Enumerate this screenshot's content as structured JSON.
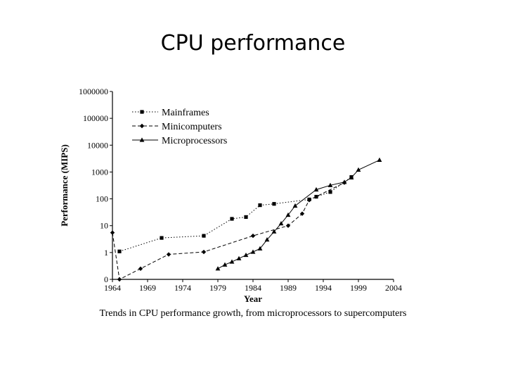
{
  "slide": {
    "title": "CPU performance"
  },
  "chart_data": {
    "type": "line",
    "title": "",
    "caption": "Trends in CPU performance growth, from microprocessors to supercomputers",
    "xlabel": "Year",
    "ylabel": "Performance (MIPS)",
    "xlim": [
      1964,
      2004
    ],
    "y_scale": "log",
    "ylim": [
      0.1,
      1000000
    ],
    "x_ticks": [
      1964,
      1969,
      1974,
      1979,
      1984,
      1989,
      1994,
      1999,
      2004
    ],
    "x_tick_labels": [
      "1964",
      "1969",
      "1974",
      "1979",
      "1984",
      "1989",
      "1994",
      "1999",
      "2004"
    ],
    "y_ticks": [
      0.1,
      1,
      10,
      100,
      1000,
      10000,
      100000,
      1000000
    ],
    "y_tick_labels": [
      "0",
      "1",
      "10",
      "100",
      "1000",
      "10000",
      "100000",
      "1000000"
    ],
    "grid": false,
    "legend_position": "top-left",
    "series": [
      {
        "name": "Mainframes",
        "marker": "square",
        "line_style": "dotted",
        "x": [
          1965,
          1971,
          1977,
          1981,
          1983,
          1985,
          1987,
          1992,
          1993,
          1995,
          1998
        ],
        "y": [
          1.1,
          3.5,
          4.2,
          18,
          21,
          58,
          65,
          95,
          120,
          180,
          650
        ]
      },
      {
        "name": "Minicomputers",
        "marker": "diamond",
        "line_style": "dashed",
        "x": [
          1964,
          1965,
          1968,
          1972,
          1977,
          1984,
          1989,
          1991,
          1992,
          1997
        ],
        "y": [
          5.5,
          0.1,
          0.25,
          0.85,
          1.05,
          4.2,
          10,
          28,
          90,
          400
        ]
      },
      {
        "name": "Microprocessors",
        "marker": "triangle",
        "line_style": "solid",
        "x": [
          1979,
          1980,
          1981,
          1982,
          1983,
          1984,
          1985,
          1986,
          1987,
          1988,
          1989,
          1990,
          1993,
          1995,
          1997,
          1998,
          1999,
          2002
        ],
        "y": [
          0.25,
          0.35,
          0.45,
          0.6,
          0.8,
          1.05,
          1.4,
          3,
          6,
          12,
          25,
          55,
          220,
          320,
          420,
          620,
          1200,
          2800
        ]
      }
    ]
  }
}
